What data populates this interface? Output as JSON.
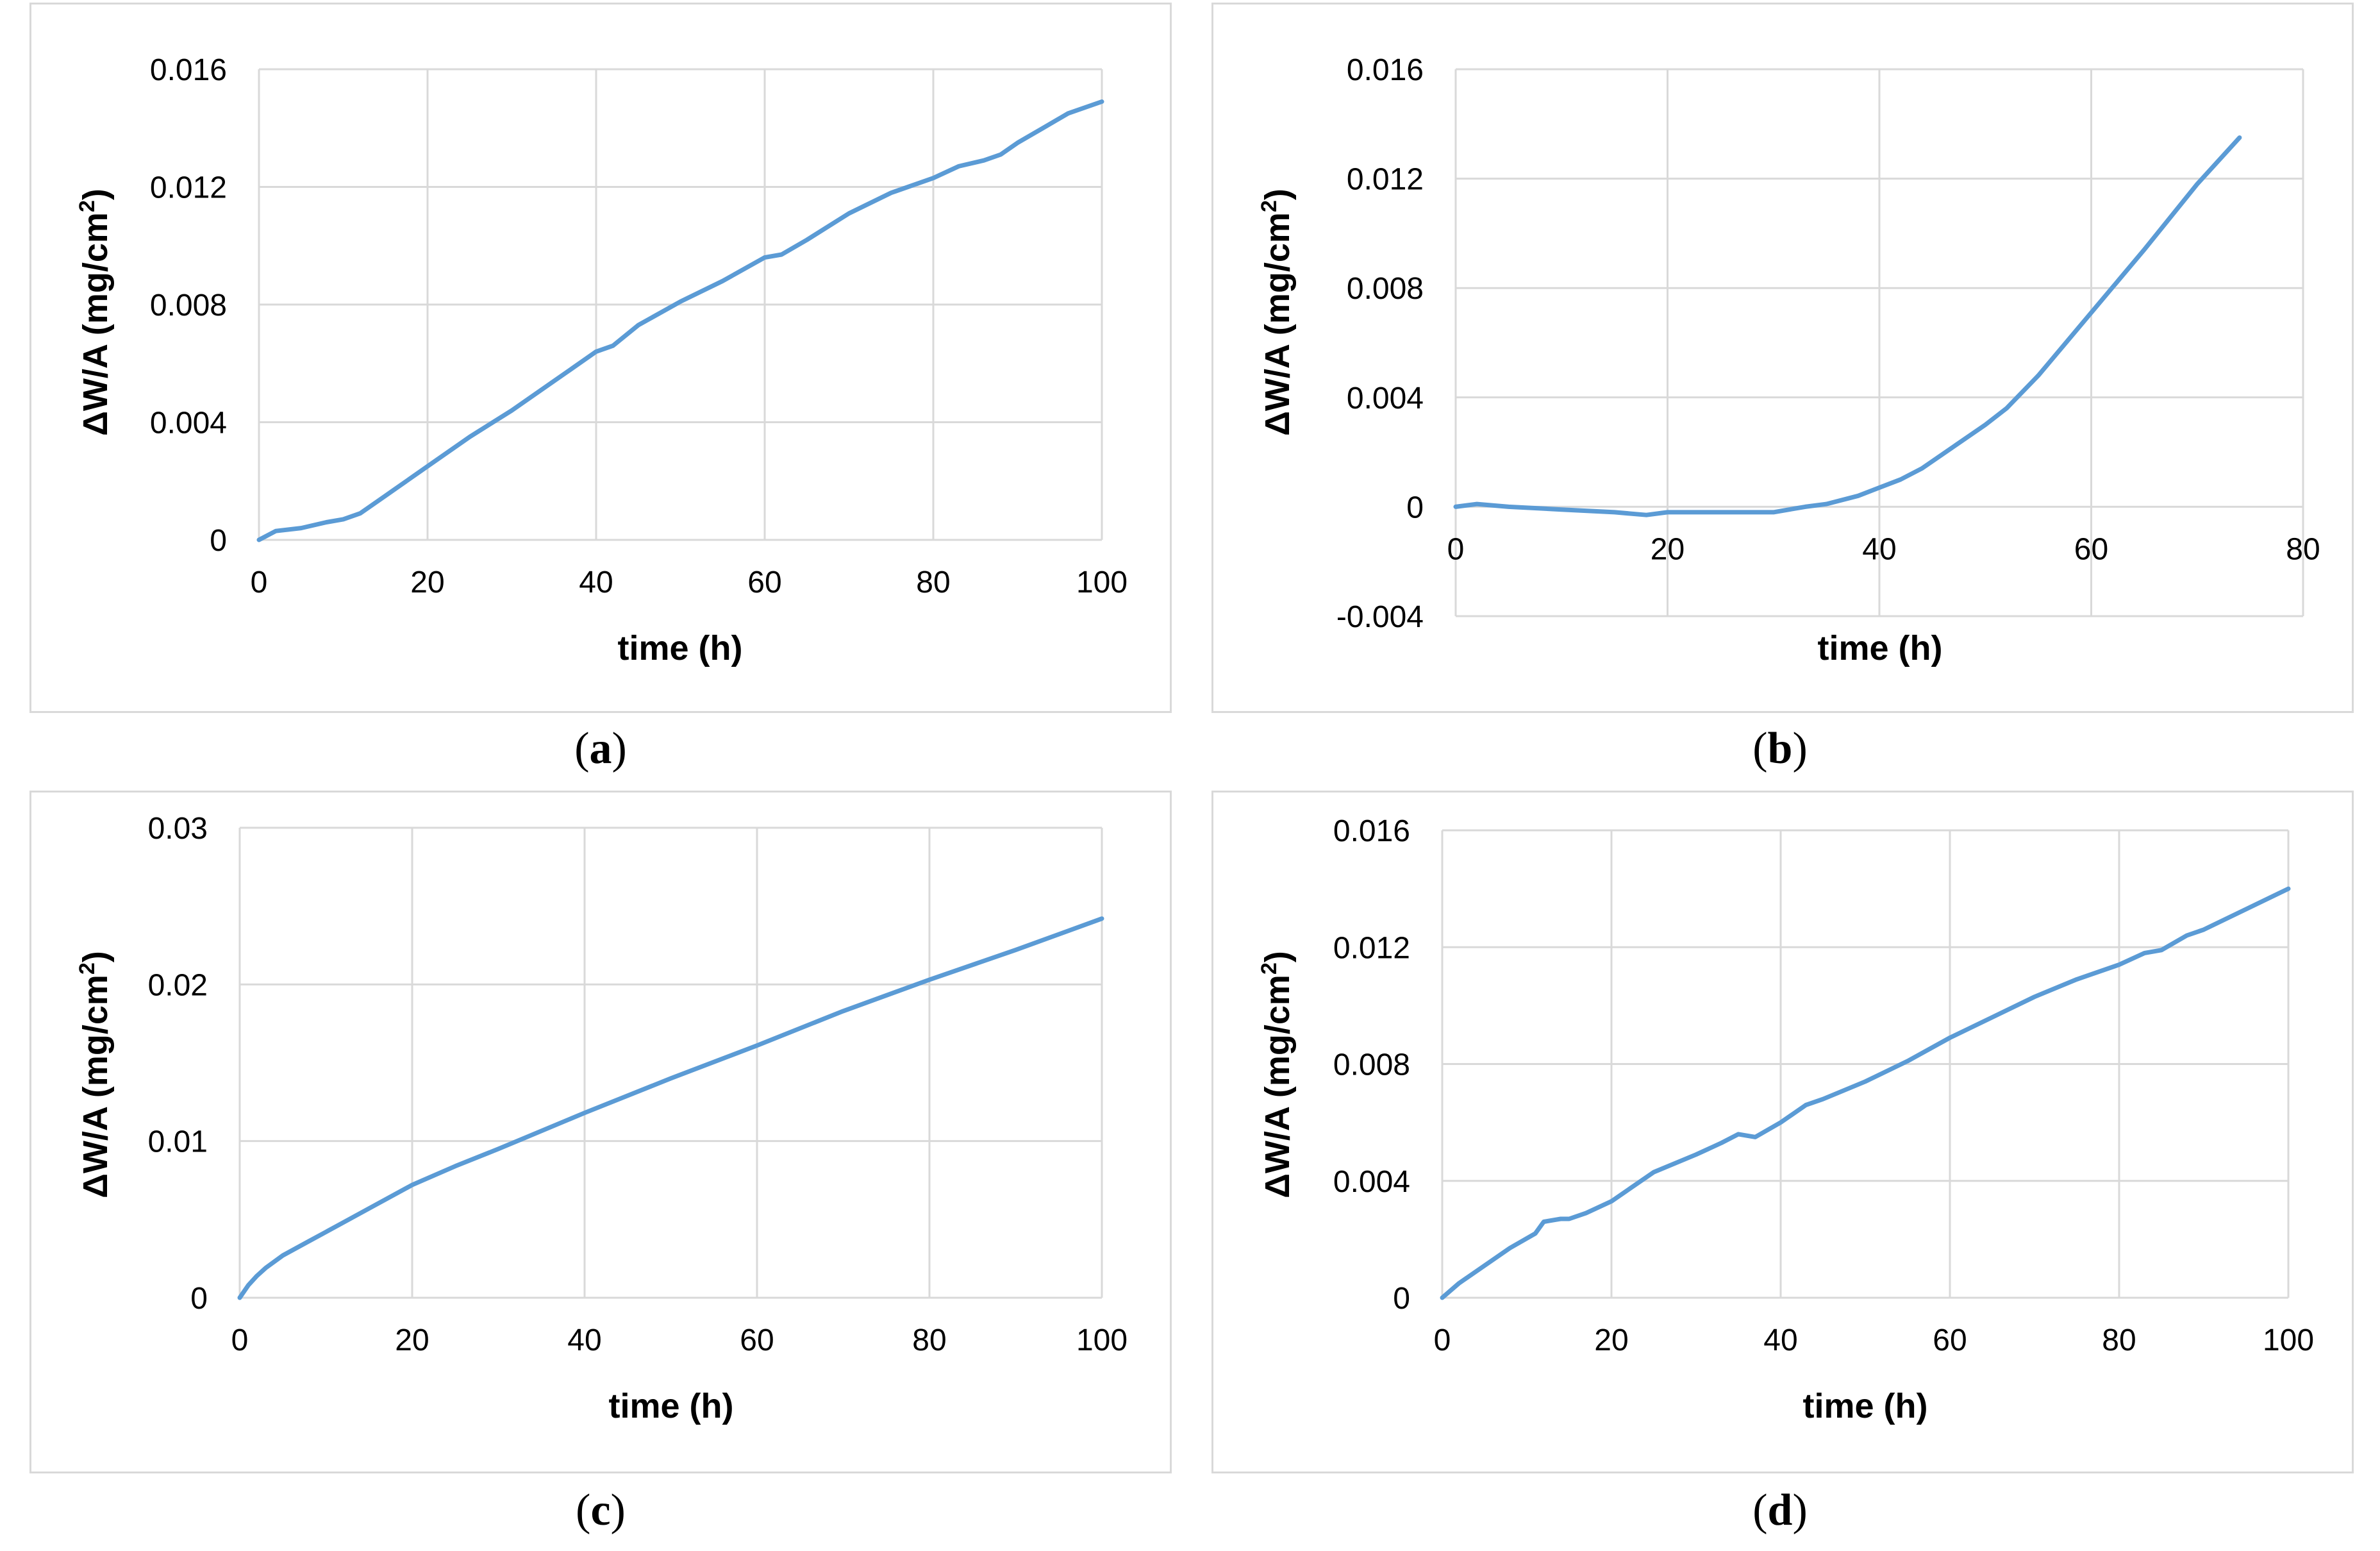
{
  "colors": {
    "line": "#5b9bd5",
    "grid": "#d9d9d9",
    "border": "#d9d9d9"
  },
  "chart_data": [
    {
      "panel": "a",
      "type": "line",
      "xlabel": "time (h)",
      "ylabel_main": "ΔW/A (mg/cm",
      "ylabel_sup": "2",
      "ylabel_end": ")",
      "xlim": [
        0,
        100
      ],
      "ylim": [
        0,
        0.016
      ],
      "xticks": [
        0,
        20,
        40,
        60,
        80,
        100
      ],
      "yticks": [
        0,
        0.004,
        0.008,
        0.012,
        0.016
      ],
      "xtick_labels": [
        "0",
        "20",
        "40",
        "60",
        "80",
        "100"
      ],
      "ytick_labels": [
        "0",
        "0.004",
        "0.008",
        "0.012",
        "0.016"
      ],
      "caption": "a",
      "series": [
        {
          "name": "ΔW/A",
          "x": [
            0,
            2,
            5,
            8,
            10,
            12,
            15,
            20,
            25,
            30,
            35,
            40,
            42,
            45,
            50,
            55,
            60,
            62,
            65,
            70,
            75,
            80,
            83,
            86,
            88,
            90,
            93,
            96,
            100
          ],
          "y": [
            0,
            0.0003,
            0.0004,
            0.0006,
            0.0007,
            0.0009,
            0.0015,
            0.0025,
            0.0035,
            0.0044,
            0.0054,
            0.0064,
            0.0066,
            0.0073,
            0.0081,
            0.0088,
            0.0096,
            0.0097,
            0.0102,
            0.0111,
            0.0118,
            0.0123,
            0.0127,
            0.0129,
            0.0131,
            0.0135,
            0.014,
            0.0145,
            0.0149
          ]
        }
      ]
    },
    {
      "panel": "b",
      "type": "line",
      "xlabel": "time (h)",
      "ylabel_main": "ΔW/A (mg/cm",
      "ylabel_sup": "2",
      "ylabel_end": ")",
      "xlim": [
        0,
        80
      ],
      "ylim": [
        -0.004,
        0.016
      ],
      "xticks": [
        0,
        20,
        40,
        60,
        80
      ],
      "yticks": [
        -0.004,
        0,
        0.004,
        0.008,
        0.012,
        0.016
      ],
      "xtick_labels": [
        "0",
        "20",
        "40",
        "60",
        "80"
      ],
      "ytick_labels": [
        "-0.004",
        "0",
        "0.004",
        "0.008",
        "0.012",
        "0.016"
      ],
      "caption": "b",
      "series": [
        {
          "name": "ΔW/A",
          "x": [
            0,
            2,
            5,
            10,
            15,
            18,
            20,
            25,
            30,
            33,
            35,
            38,
            40,
            42,
            44,
            47,
            50,
            52,
            55,
            60,
            65,
            70,
            74
          ],
          "y": [
            0,
            0.0001,
            0.0,
            -0.0001,
            -0.0002,
            -0.0003,
            -0.0002,
            -0.0002,
            -0.0002,
            0.0,
            0.0001,
            0.0004,
            0.0007,
            0.001,
            0.0014,
            0.0022,
            0.003,
            0.0036,
            0.0048,
            0.0071,
            0.0094,
            0.0118,
            0.0135
          ]
        }
      ]
    },
    {
      "panel": "c",
      "type": "line",
      "xlabel": "time (h)",
      "ylabel_main": "ΔW/A (mg/cm",
      "ylabel_sup": "2",
      "ylabel_end": ")",
      "xlim": [
        0,
        100
      ],
      "ylim": [
        0,
        0.03
      ],
      "xticks": [
        0,
        20,
        40,
        60,
        80,
        100
      ],
      "yticks": [
        0,
        0.01,
        0.02,
        0.03
      ],
      "xtick_labels": [
        "0",
        "20",
        "40",
        "60",
        "80",
        "100"
      ],
      "ytick_labels": [
        "0",
        "0.01",
        "0.02",
        "0.03"
      ],
      "caption": "c",
      "series": [
        {
          "name": "ΔW/A",
          "x": [
            0,
            1,
            2,
            3,
            5,
            8,
            10,
            15,
            20,
            25,
            30,
            40,
            50,
            60,
            70,
            80,
            90,
            100
          ],
          "y": [
            0,
            0.0008,
            0.0014,
            0.0019,
            0.0027,
            0.0036,
            0.0042,
            0.0057,
            0.0072,
            0.0084,
            0.0095,
            0.0118,
            0.014,
            0.0161,
            0.0183,
            0.0203,
            0.0222,
            0.0242
          ]
        }
      ]
    },
    {
      "panel": "d",
      "type": "line",
      "xlabel": "time (h)",
      "ylabel_main": "ΔW/A (mg/cm",
      "ylabel_sup": "2",
      "ylabel_end": ")",
      "xlim": [
        0,
        100
      ],
      "ylim": [
        0,
        0.016
      ],
      "xticks": [
        0,
        20,
        40,
        60,
        80,
        100
      ],
      "yticks": [
        0,
        0.004,
        0.008,
        0.012,
        0.016
      ],
      "xtick_labels": [
        "0",
        "20",
        "40",
        "60",
        "80",
        "100"
      ],
      "ytick_labels": [
        "0",
        "0.004",
        "0.008",
        "0.012",
        "0.016"
      ],
      "caption": "d",
      "series": [
        {
          "name": "ΔW/A",
          "x": [
            0,
            2,
            5,
            8,
            11,
            12,
            14,
            15,
            17,
            20,
            25,
            30,
            33,
            35,
            37,
            40,
            43,
            45,
            50,
            55,
            60,
            65,
            70,
            75,
            80,
            83,
            85,
            88,
            90,
            95,
            100
          ],
          "y": [
            0,
            0.0005,
            0.0011,
            0.0017,
            0.0022,
            0.0026,
            0.0027,
            0.0027,
            0.0029,
            0.0033,
            0.0043,
            0.0049,
            0.0053,
            0.0056,
            0.0055,
            0.006,
            0.0066,
            0.0068,
            0.0074,
            0.0081,
            0.0089,
            0.0096,
            0.0103,
            0.0109,
            0.0114,
            0.0118,
            0.0119,
            0.0124,
            0.0126,
            0.0133,
            0.014
          ]
        }
      ]
    }
  ]
}
